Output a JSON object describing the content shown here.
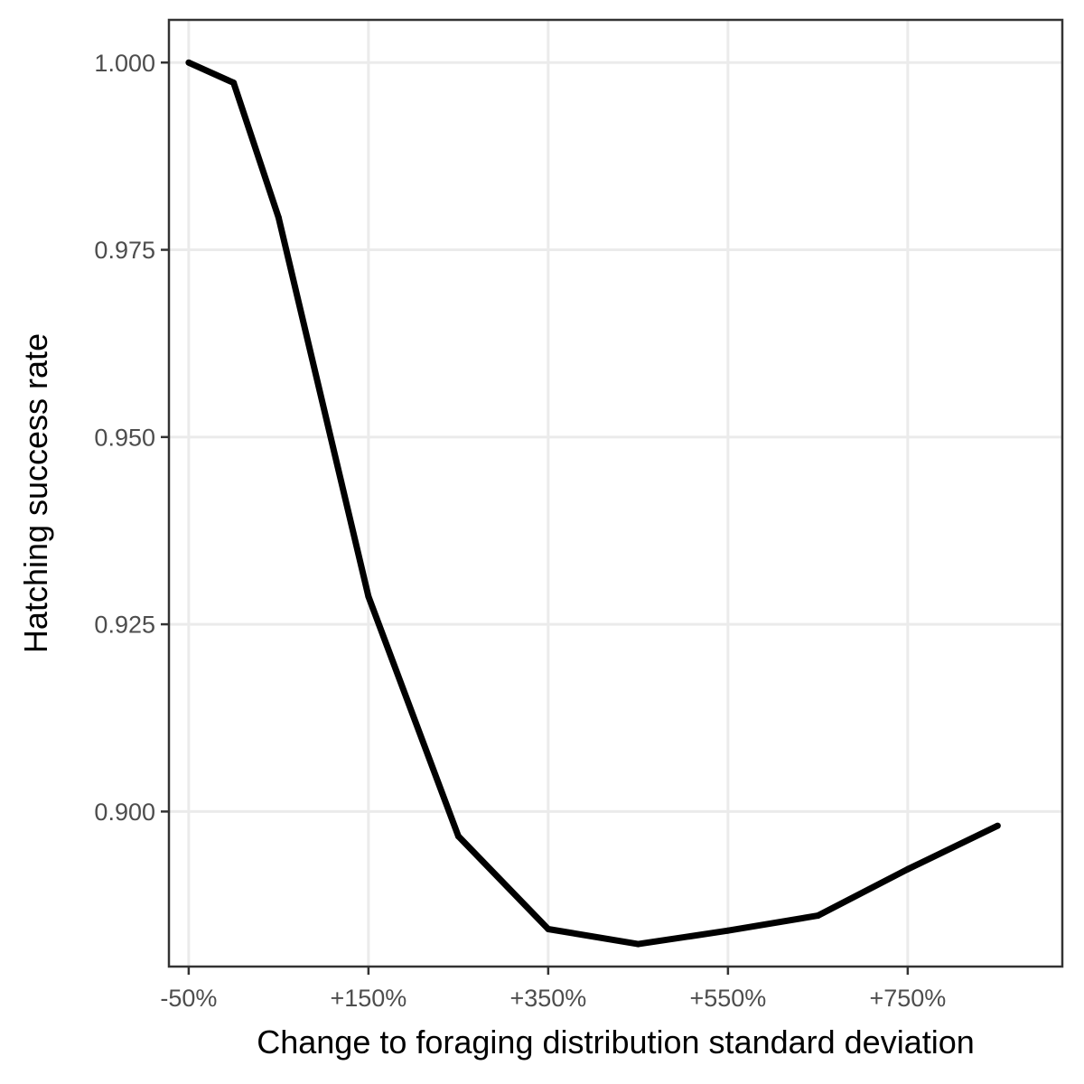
{
  "chart_data": {
    "type": "line",
    "title": "",
    "xlabel": "Change to foraging distribution standard deviation",
    "ylabel": "Hatching success rate",
    "x_unit": "%",
    "x": [
      -50,
      0,
      50,
      150,
      250,
      350,
      450,
      550,
      650,
      750,
      850
    ],
    "series": [
      {
        "name": "",
        "values": [
          1.0,
          0.9973,
          0.9793,
          0.9287,
          0.8967,
          0.8843,
          0.8823,
          0.8841,
          0.8861,
          0.8923,
          0.8981
        ]
      }
    ],
    "xlim": [
      -72,
      922
    ],
    "ylim": [
      0.8793,
      1.0057
    ],
    "x_ticks": [
      -50,
      150,
      350,
      550,
      750
    ],
    "x_tick_labels": [
      "-50%",
      "+150%",
      "+350%",
      "+550%",
      "+750%"
    ],
    "y_ticks": [
      0.9,
      0.925,
      0.95,
      0.975,
      1.0
    ],
    "y_tick_labels": [
      "0.900",
      "0.925",
      "0.950",
      "0.975",
      "1.000"
    ],
    "grid": true,
    "legend": "none",
    "colors": {
      "line": "#000000",
      "grid": "#ebebeb",
      "panel_border": "#333333",
      "tick_text": "#4d4d4d"
    }
  }
}
